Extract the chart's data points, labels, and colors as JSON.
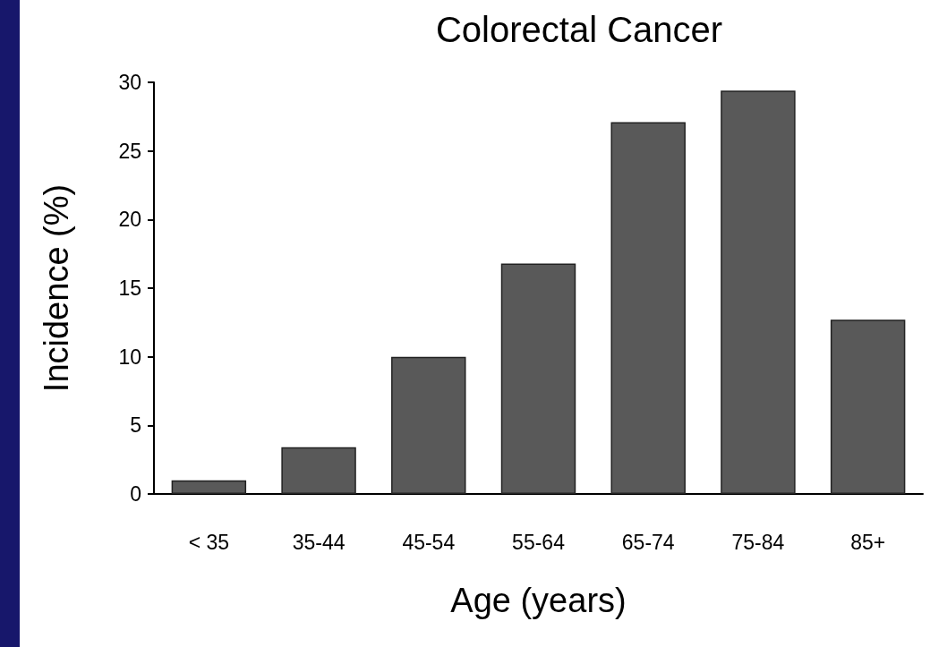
{
  "chart_data": {
    "type": "bar",
    "title": "Colorectal Cancer",
    "xlabel": "Age (years)",
    "ylabel": "Incidence (%)",
    "categories": [
      "< 35",
      "35-44",
      "45-54",
      "55-64",
      "65-74",
      "75-84",
      "85+"
    ],
    "values": [
      1.0,
      3.4,
      10.0,
      16.8,
      27.1,
      29.4,
      12.7
    ],
    "color": "#595959",
    "ylim": [
      0,
      30
    ],
    "yticks": [
      0,
      5,
      10,
      15,
      20,
      25,
      30
    ],
    "grid": false
  }
}
